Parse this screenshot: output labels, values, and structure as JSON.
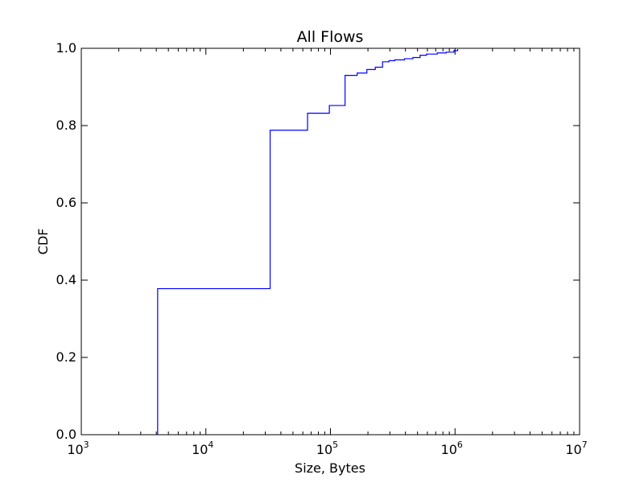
{
  "chart_data": {
    "type": "line",
    "title": "All Flows",
    "xlabel": "Size, Bytes",
    "ylabel": "CDF",
    "xscale": "log",
    "xlim": [
      1000,
      10000000
    ],
    "ylim": [
      0.0,
      1.0
    ],
    "grid": false,
    "x_ticks": [
      {
        "base": "10",
        "exp": "3",
        "value": 1000
      },
      {
        "base": "10",
        "exp": "4",
        "value": 10000
      },
      {
        "base": "10",
        "exp": "5",
        "value": 100000
      },
      {
        "base": "10",
        "exp": "6",
        "value": 1000000
      },
      {
        "base": "10",
        "exp": "7",
        "value": 10000000
      }
    ],
    "y_ticks": [
      {
        "label": "0.0",
        "value": 0.0
      },
      {
        "label": "0.2",
        "value": 0.2
      },
      {
        "label": "0.4",
        "value": 0.4
      },
      {
        "label": "0.6",
        "value": 0.6
      },
      {
        "label": "0.8",
        "value": 0.8
      },
      {
        "label": "1.0",
        "value": 1.0
      }
    ],
    "series": [
      {
        "color": "#0000ff",
        "step": "post",
        "points": [
          [
            4100,
            0.0
          ],
          [
            4100,
            0.378
          ],
          [
            32800,
            0.378
          ],
          [
            32800,
            0.788
          ],
          [
            65500,
            0.788
          ],
          [
            65500,
            0.832
          ],
          [
            98000,
            0.832
          ],
          [
            98000,
            0.852
          ],
          [
            131000,
            0.852
          ],
          [
            131000,
            0.93
          ],
          [
            164000,
            0.93
          ],
          [
            164000,
            0.936
          ],
          [
            196000,
            0.936
          ],
          [
            196000,
            0.945
          ],
          [
            229000,
            0.945
          ],
          [
            229000,
            0.951
          ],
          [
            262000,
            0.951
          ],
          [
            262000,
            0.965
          ],
          [
            295000,
            0.965
          ],
          [
            295000,
            0.968
          ],
          [
            328000,
            0.968
          ],
          [
            328000,
            0.97
          ],
          [
            393000,
            0.97
          ],
          [
            393000,
            0.973
          ],
          [
            459000,
            0.973
          ],
          [
            459000,
            0.976
          ],
          [
            524000,
            0.976
          ],
          [
            524000,
            0.982
          ],
          [
            590000,
            0.982
          ],
          [
            590000,
            0.985
          ],
          [
            720000,
            0.985
          ],
          [
            720000,
            0.988
          ],
          [
            850000,
            0.988
          ],
          [
            850000,
            0.99
          ],
          [
            980000,
            0.99
          ],
          [
            980000,
            0.994
          ],
          [
            1050000,
            0.994
          ],
          [
            1050000,
            0.998
          ]
        ]
      }
    ]
  }
}
